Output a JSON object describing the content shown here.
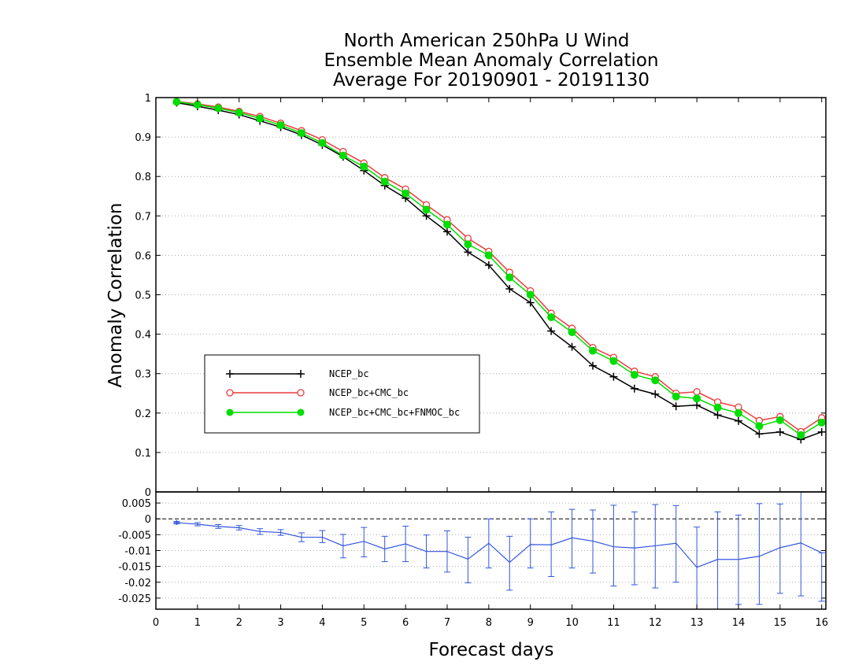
{
  "chart_data": [
    {
      "type": "line",
      "title": [
        "North American 250hPa U Wind",
        "Ensemble Mean Anomaly Correlation",
        "Average For 20190901 - 20191130"
      ],
      "ylabel": "Anomaly Correlation",
      "ylim": [
        0,
        1
      ],
      "yticks": [
        "0",
        "0.1",
        "0.2",
        "0.3",
        "0.4",
        "0.5",
        "0.6",
        "0.7",
        "0.8",
        "0.9",
        "1"
      ],
      "xlim": [
        0,
        16.1
      ],
      "grid": true,
      "legend_position": "center-left",
      "x": [
        0.5,
        1,
        1.5,
        2,
        2.5,
        3,
        3.5,
        4,
        4.5,
        5,
        5.5,
        6,
        6.5,
        7,
        7.5,
        8,
        8.5,
        9,
        9.5,
        10,
        10.5,
        11,
        11.5,
        12,
        12.5,
        13,
        13.5,
        14,
        14.5,
        15,
        15.5,
        16
      ],
      "series": [
        {
          "name": "NCEP_bc",
          "color": "#000000",
          "marker": "plus",
          "values": [
            0.987,
            0.978,
            0.968,
            0.957,
            0.941,
            0.925,
            0.905,
            0.88,
            0.85,
            0.815,
            0.777,
            0.745,
            0.7,
            0.66,
            0.608,
            0.575,
            0.515,
            0.48,
            0.408,
            0.368,
            0.32,
            0.292,
            0.262,
            0.248,
            0.217,
            0.22,
            0.195,
            0.18,
            0.147,
            0.152,
            0.133,
            0.152
          ]
        },
        {
          "name": "NCEP_bc+CMC_bc",
          "color": "#ee3b3b",
          "marker": "open-circle",
          "values": [
            0.99,
            0.984,
            0.976,
            0.965,
            0.952,
            0.935,
            0.916,
            0.893,
            0.863,
            0.834,
            0.797,
            0.768,
            0.728,
            0.69,
            0.643,
            0.61,
            0.557,
            0.51,
            0.453,
            0.415,
            0.366,
            0.341,
            0.306,
            0.292,
            0.25,
            0.254,
            0.228,
            0.215,
            0.181,
            0.191,
            0.153,
            0.188
          ]
        },
        {
          "name": "NCEP_bc+CMC_bc+FNMOC_bc",
          "color": "#00dd00",
          "marker": "filled-circle",
          "values": [
            0.989,
            0.982,
            0.973,
            0.962,
            0.947,
            0.93,
            0.91,
            0.885,
            0.853,
            0.825,
            0.787,
            0.757,
            0.716,
            0.678,
            0.628,
            0.6,
            0.544,
            0.5,
            0.443,
            0.405,
            0.358,
            0.332,
            0.297,
            0.283,
            0.242,
            0.237,
            0.214,
            0.2,
            0.167,
            0.182,
            0.144,
            0.176
          ]
        }
      ]
    },
    {
      "type": "line",
      "xlabel": "Forecast days",
      "xlim": [
        0,
        16.1
      ],
      "xticks": [
        "0",
        "1",
        "2",
        "3",
        "4",
        "5",
        "6",
        "7",
        "8",
        "9",
        "10",
        "11",
        "12",
        "13",
        "14",
        "15",
        "16"
      ],
      "ylim": [
        -0.0285,
        0.0085
      ],
      "yticks": [
        "0.005",
        "0",
        "-0.005",
        "-0.01",
        "-0.015",
        "-0.02",
        "-0.025"
      ],
      "grid": true,
      "x": [
        0.5,
        1,
        1.5,
        2,
        2.5,
        3,
        3.5,
        4,
        4.5,
        5,
        5.5,
        6,
        6.5,
        7,
        7.5,
        8,
        8.5,
        9,
        9.5,
        10,
        10.5,
        11,
        11.5,
        12,
        12.5,
        13,
        13.5,
        14,
        14.5,
        15,
        15.5,
        16
      ],
      "series": [
        {
          "color": "#3355dd",
          "values": [
            -0.0012,
            -0.0017,
            -0.0024,
            -0.0028,
            -0.004,
            -0.0043,
            -0.0058,
            -0.0058,
            -0.0085,
            -0.0071,
            -0.0095,
            -0.0079,
            -0.0103,
            -0.0103,
            -0.0127,
            -0.0077,
            -0.0137,
            -0.0081,
            -0.0082,
            -0.006,
            -0.007,
            -0.0088,
            -0.0092,
            -0.0085,
            -0.0077,
            -0.0153,
            -0.0128,
            -0.0128,
            -0.0118,
            -0.0091,
            -0.0076,
            -0.0107
          ],
          "error_low": [
            -0.0016,
            -0.0022,
            -0.003,
            -0.0035,
            -0.0049,
            -0.0052,
            -0.0072,
            -0.0075,
            -0.0123,
            -0.012,
            -0.0135,
            -0.0135,
            -0.0155,
            -0.0168,
            -0.0202,
            -0.0155,
            -0.0225,
            -0.0155,
            -0.0182,
            -0.0155,
            -0.0171,
            -0.0212,
            -0.0208,
            -0.0218,
            -0.02,
            -0.03,
            -0.03,
            -0.027,
            -0.027,
            -0.0235,
            -0.0243,
            -0.026
          ],
          "error_high": [
            -0.0008,
            -0.0012,
            -0.0018,
            -0.0021,
            -0.0031,
            -0.0034,
            -0.0044,
            -0.0037,
            -0.0049,
            -0.0027,
            -0.0055,
            -0.0023,
            -0.0051,
            -0.0038,
            -0.0058,
            0,
            -0.0055,
            0,
            0.0022,
            0.003,
            0.0028,
            0.0043,
            0.0022,
            0.0045,
            0.0042,
            -0.0026,
            0.0022,
            0.0012,
            0.0048,
            0.0047,
            0.0085,
            -0.0107
          ]
        }
      ]
    }
  ]
}
